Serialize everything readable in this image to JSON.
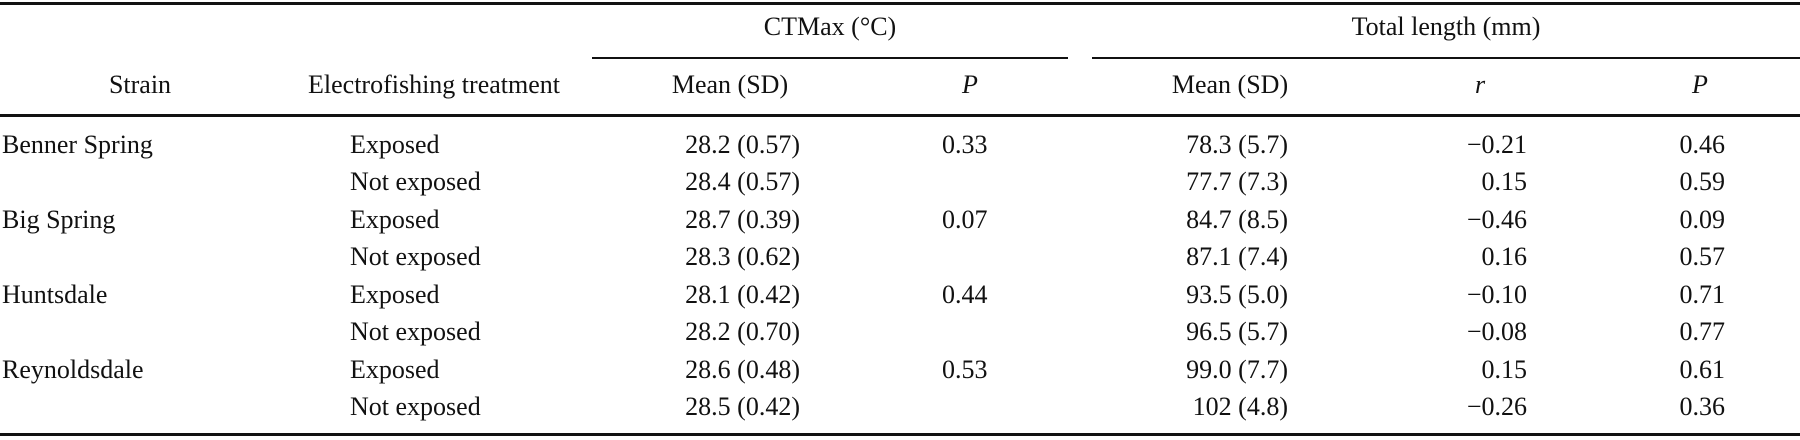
{
  "table": {
    "group_headers": {
      "ctmax": "CTMax (°C)",
      "length": "Total length (mm)"
    },
    "column_headers": {
      "strain": "Strain",
      "treatment": "Electrofishing treatment",
      "ctmax_mean": "Mean (SD)",
      "ctmax_p": "P",
      "length_mean": "Mean (SD)",
      "length_r": "r",
      "length_p": "P"
    },
    "rows": [
      {
        "strain": "Benner Spring",
        "treatment": "Exposed",
        "ctmax_mean": "28.2 (0.57)",
        "ctmax_p": "0.33",
        "length_mean": "78.3 (5.7)",
        "r": "−0.21",
        "p": "0.46"
      },
      {
        "strain": "",
        "treatment": "Not exposed",
        "ctmax_mean": "28.4 (0.57)",
        "ctmax_p": "",
        "length_mean": "77.7 (7.3)",
        "r": "0.15",
        "p": "0.59"
      },
      {
        "strain": "Big Spring",
        "treatment": "Exposed",
        "ctmax_mean": "28.7 (0.39)",
        "ctmax_p": "0.07",
        "length_mean": "84.7 (8.5)",
        "r": "−0.46",
        "p": "0.09"
      },
      {
        "strain": "",
        "treatment": "Not exposed",
        "ctmax_mean": "28.3 (0.62)",
        "ctmax_p": "",
        "length_mean": "87.1 (7.4)",
        "r": "0.16",
        "p": "0.57"
      },
      {
        "strain": "Huntsdale",
        "treatment": "Exposed",
        "ctmax_mean": "28.1 (0.42)",
        "ctmax_p": "0.44",
        "length_mean": "93.5 (5.0)",
        "r": "−0.10",
        "p": "0.71"
      },
      {
        "strain": "",
        "treatment": "Not exposed",
        "ctmax_mean": "28.2 (0.70)",
        "ctmax_p": "",
        "length_mean": "96.5 (5.7)",
        "r": "−0.08",
        "p": "0.77"
      },
      {
        "strain": "Reynoldsdale",
        "treatment": "Exposed",
        "ctmax_mean": "28.6 (0.48)",
        "ctmax_p": "0.53",
        "length_mean": "99.0 (7.7)",
        "r": "0.15",
        "p": "0.61"
      },
      {
        "strain": "",
        "treatment": "Not exposed",
        "ctmax_mean": "28.5 (0.42)",
        "ctmax_p": "",
        "length_mean": "102 (4.8)",
        "r": "−0.26",
        "p": "0.36"
      }
    ]
  }
}
